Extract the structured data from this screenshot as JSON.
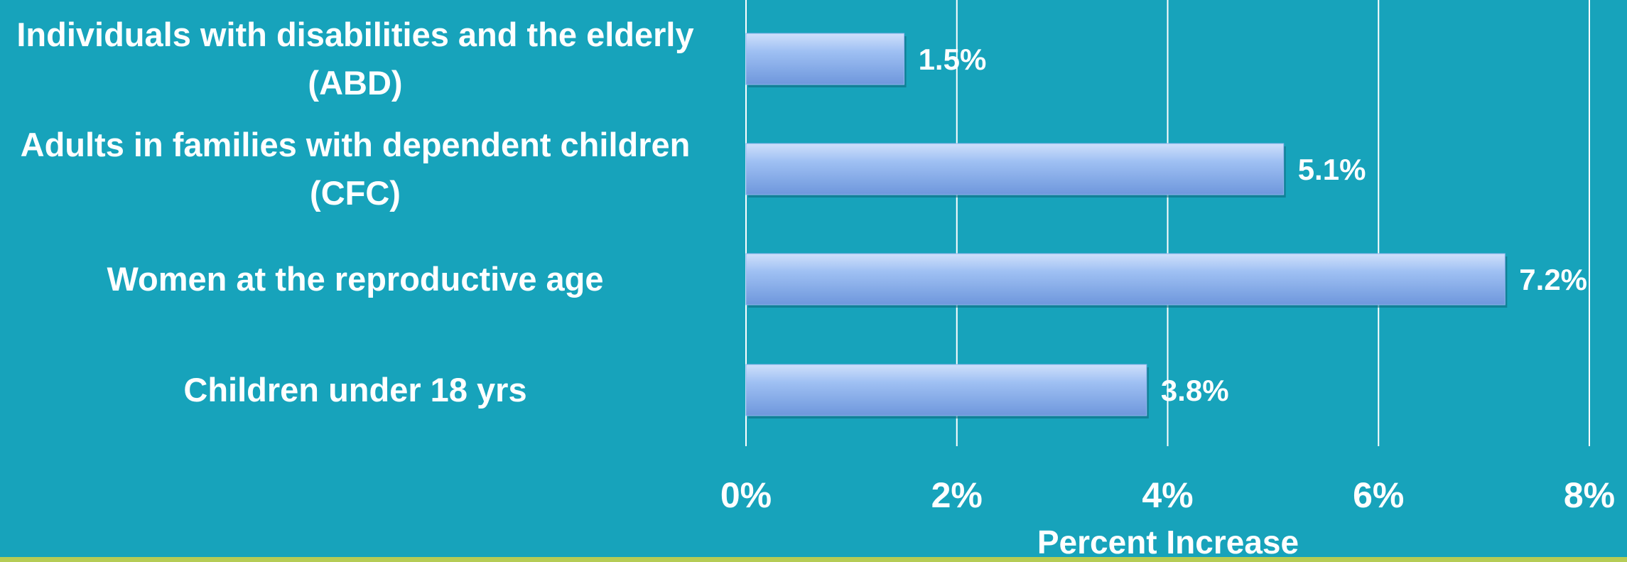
{
  "chart_data": {
    "type": "bar",
    "orientation": "horizontal",
    "categories": [
      "Individuals with disabilities and the elderly (ABD)",
      "Adults in families with dependent children (CFC)",
      "Women at the reproductive age",
      "Children under 18 yrs"
    ],
    "values": [
      1.5,
      5.1,
      7.2,
      3.8
    ],
    "value_labels": [
      "1.5%",
      "5.1%",
      "7.2%",
      "3.8%"
    ],
    "color": "#8fb6ee",
    "xlabel": "Percent Increase",
    "xlim": [
      0,
      8
    ],
    "xticks": [
      {
        "value": 0,
        "label": "0%"
      },
      {
        "value": 2,
        "label": "2%"
      },
      {
        "value": 4,
        "label": "4%"
      },
      {
        "value": 6,
        "label": "6%"
      },
      {
        "value": 8,
        "label": "8%"
      }
    ],
    "grid": true
  }
}
